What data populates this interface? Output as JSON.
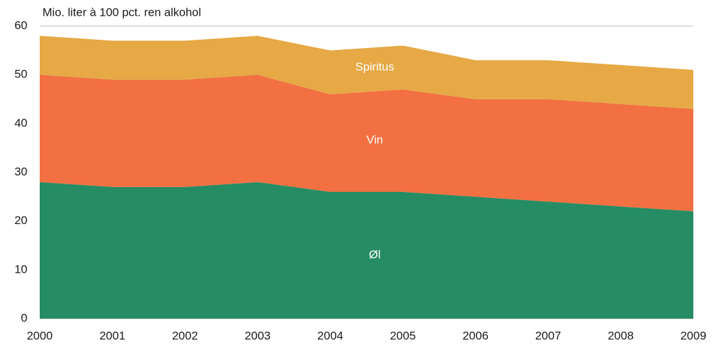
{
  "chart_data": {
    "type": "stacked_area",
    "y_axis_label": "Mio. liter à 100 pct. ren alkohol",
    "x": [
      2000,
      2001,
      2002,
      2003,
      2004,
      2005,
      2006,
      2007,
      2008,
      2009
    ],
    "xlim": [
      2000,
      2009
    ],
    "xticks": [
      2000,
      2001,
      2002,
      2003,
      2004,
      2005,
      2006,
      2007,
      2008,
      2009
    ],
    "ylim": [
      0,
      60
    ],
    "yticks": [
      0,
      10,
      20,
      30,
      40,
      50,
      60
    ],
    "grid": true,
    "series": [
      {
        "name": "Øl",
        "color": "#268c64",
        "values": [
          28,
          27,
          27,
          28,
          26,
          26,
          25,
          24,
          23,
          22
        ]
      },
      {
        "name": "Vin",
        "color": "#f27042",
        "values": [
          22,
          22,
          22,
          22,
          20,
          21,
          20,
          21,
          21,
          21
        ]
      },
      {
        "name": "Spiritus",
        "color": "#e6a945",
        "values": [
          8,
          8,
          8,
          8,
          9,
          9,
          8,
          8,
          8,
          8
        ]
      }
    ]
  }
}
